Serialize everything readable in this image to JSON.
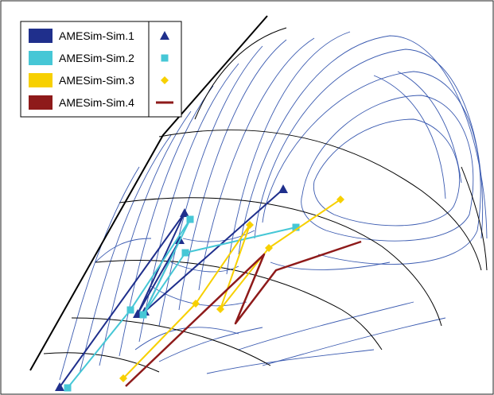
{
  "chart_data": {
    "type": "line",
    "title": "",
    "xlabel": "",
    "ylabel": "",
    "grid": false,
    "legend_position": "top-left",
    "colors": {
      "AMESim-Sim.1": "#1f2f8c",
      "AMESim-Sim.2": "#46c7d6",
      "AMESim-Sim.3": "#f7d000",
      "AMESim-Sim.4": "#8e1a1a",
      "contour": "#3a5ab0",
      "envelope": "#000000",
      "speed_curve": "#000000"
    },
    "series": [
      {
        "name": "AMESim-Sim.1",
        "marker": "triangle",
        "points": [
          [
            75,
            487
          ],
          [
            232,
            268
          ],
          [
            173,
            395
          ],
          [
            226,
            302
          ],
          [
            182,
            392
          ],
          [
            356,
            238
          ]
        ]
      },
      {
        "name": "AMESim-Sim.2",
        "marker": "square",
        "points": [
          [
            85,
            488
          ],
          [
            164,
            390
          ],
          [
            239,
            276
          ],
          [
            180,
            396
          ],
          [
            233,
            318
          ],
          [
            372,
            286
          ]
        ]
      },
      {
        "name": "AMESim-Sim.3",
        "marker": "diamond",
        "points": [
          [
            155,
            476
          ],
          [
            246,
            382
          ],
          [
            314,
            283
          ],
          [
            277,
            389
          ],
          [
            338,
            312
          ],
          [
            428,
            251
          ]
        ]
      },
      {
        "name": "AMESim-Sim.4",
        "marker": "line",
        "points": [
          [
            158,
            486
          ],
          [
            332,
            320
          ],
          [
            296,
            407
          ],
          [
            347,
            340
          ],
          [
            454,
            304
          ]
        ]
      }
    ]
  }
}
